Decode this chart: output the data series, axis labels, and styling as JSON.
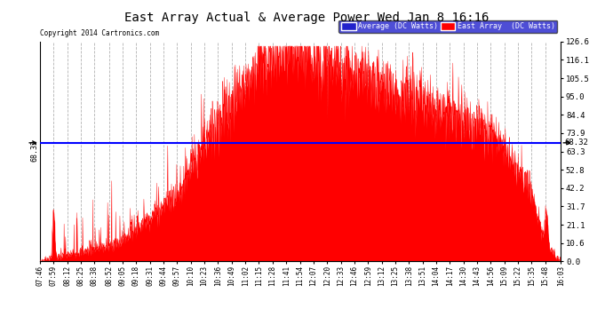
{
  "title": "East Array Actual & Average Power Wed Jan 8 16:16",
  "copyright": "Copyright 2014 Cartronics.com",
  "avg_label": "Average (DC Watts)",
  "east_label": "East Array  (DC Watts)",
  "avg_value": 68.32,
  "ymin": 0.0,
  "ymax": 126.6,
  "yticks_right": [
    0.0,
    10.6,
    21.1,
    31.7,
    42.2,
    52.8,
    63.3,
    73.9,
    84.4,
    95.0,
    105.5,
    116.1,
    126.6
  ],
  "bg_color": "#ffffff",
  "grid_color": "#aaaaaa",
  "fill_color": "#ff0000",
  "avg_line_color": "#0000ff",
  "xtick_labels": [
    "07:46",
    "07:59",
    "08:12",
    "08:25",
    "08:38",
    "08:52",
    "09:05",
    "09:18",
    "09:31",
    "09:44",
    "09:57",
    "10:10",
    "10:23",
    "10:36",
    "10:49",
    "11:02",
    "11:15",
    "11:28",
    "11:41",
    "11:54",
    "12:07",
    "12:20",
    "12:33",
    "12:46",
    "12:59",
    "13:12",
    "13:25",
    "13:38",
    "13:51",
    "14:04",
    "14:17",
    "14:30",
    "14:43",
    "14:56",
    "15:09",
    "15:22",
    "15:35",
    "15:48",
    "16:03"
  ]
}
